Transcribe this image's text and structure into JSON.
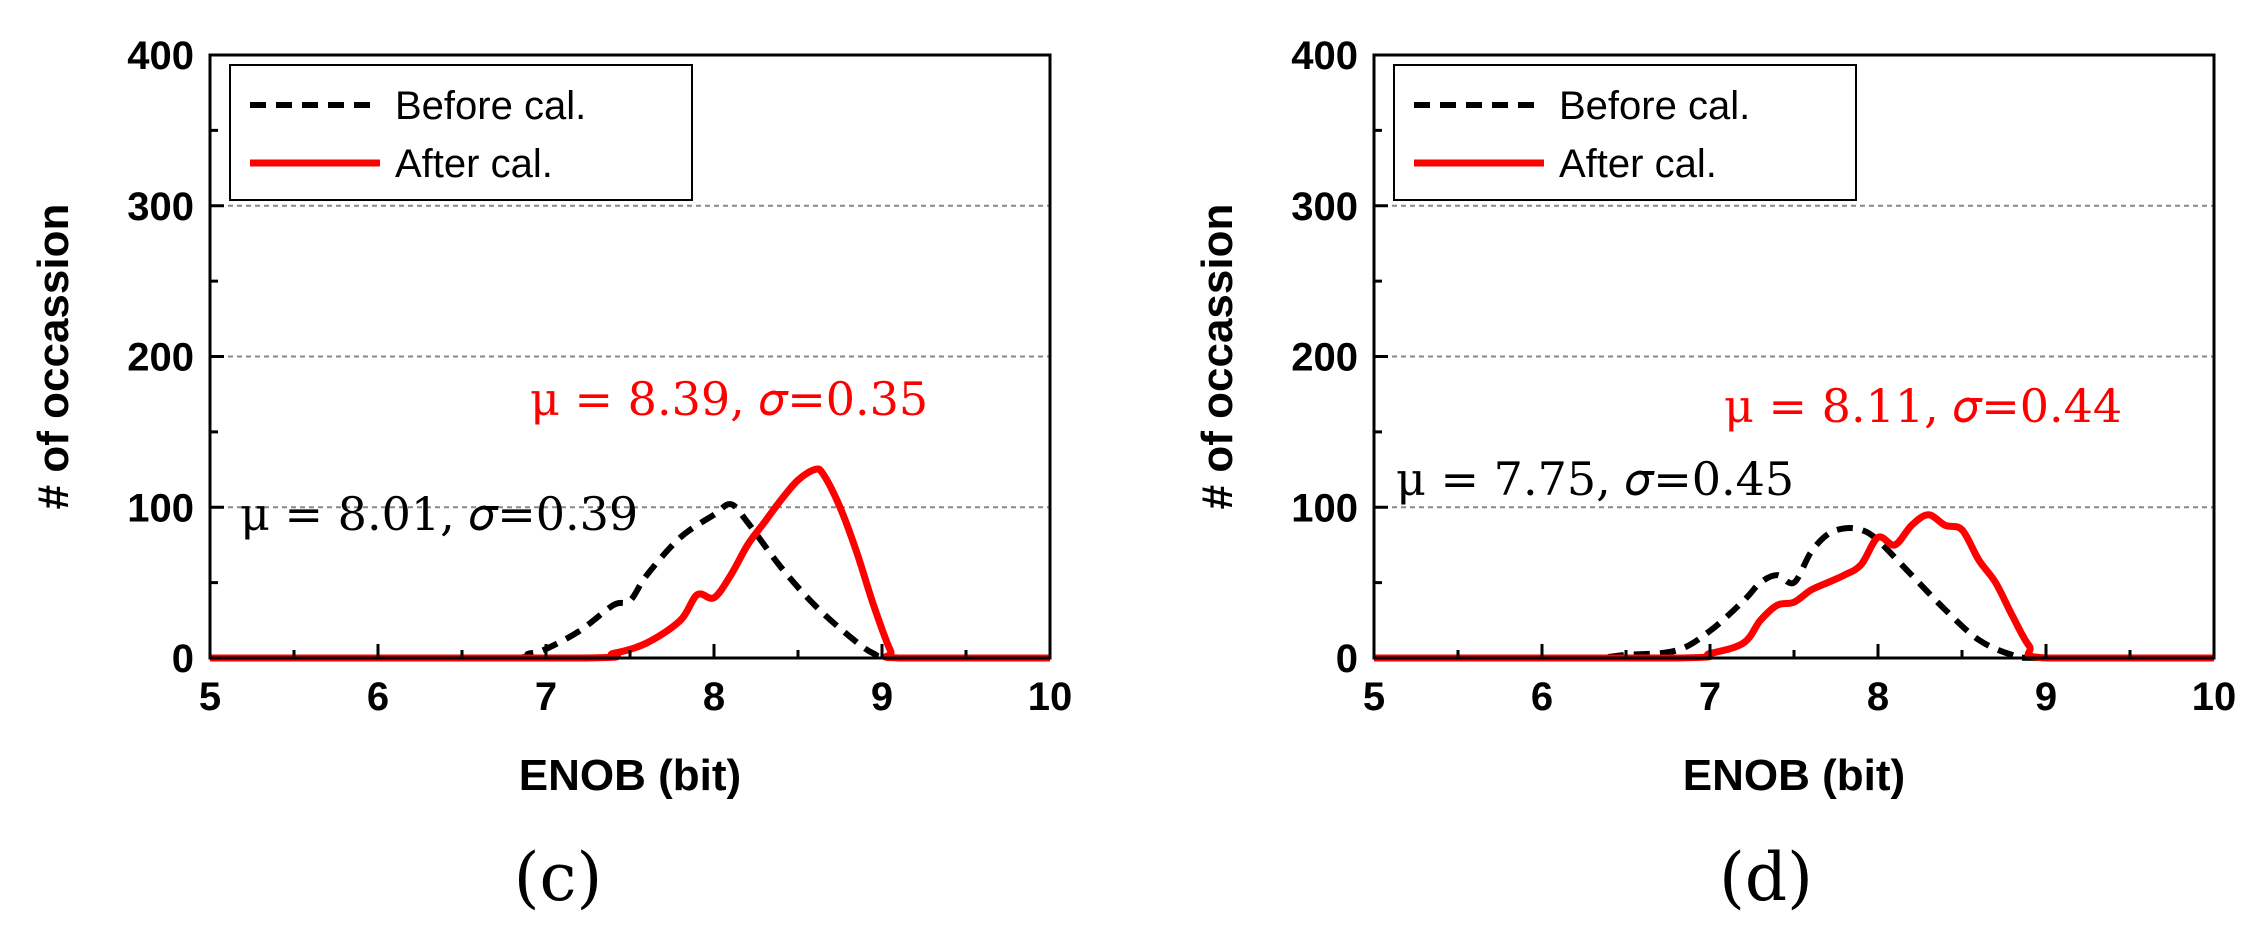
{
  "chart_data": [
    {
      "type": "line",
      "panel_label": "(c)",
      "xlabel": "ENOB (bit)",
      "ylabel": "# of occassion",
      "xlim": [
        5,
        10
      ],
      "ylim": [
        0,
        400
      ],
      "xticks": [
        "5",
        "6",
        "7",
        "8",
        "9",
        "10"
      ],
      "yticks": [
        "0",
        "100",
        "200",
        "300",
        "400"
      ],
      "grid": "horizontal dashed",
      "legend": "top-left",
      "series": [
        {
          "name": "Before cal.",
          "style": "dashed",
          "color": "#000000",
          "x": [
            5,
            6.7,
            6.9,
            7.0,
            7.2,
            7.4,
            7.5,
            7.6,
            7.8,
            8.0,
            8.1,
            8.2,
            8.4,
            8.6,
            8.8,
            8.95,
            9.1,
            10
          ],
          "y": [
            0,
            0,
            3,
            6,
            18,
            35,
            38,
            55,
            80,
            95,
            102,
            90,
            60,
            35,
            15,
            3,
            0,
            0
          ]
        },
        {
          "name": "After cal.",
          "style": "solid",
          "color": "#ff0000",
          "x": [
            5,
            7.2,
            7.4,
            7.6,
            7.8,
            7.9,
            8.0,
            8.1,
            8.2,
            8.3,
            8.4,
            8.5,
            8.6,
            8.65,
            8.75,
            8.85,
            8.95,
            9.05,
            9.1,
            10
          ],
          "y": [
            0,
            0,
            3,
            10,
            25,
            42,
            40,
            55,
            75,
            90,
            105,
            118,
            125,
            122,
            100,
            70,
            35,
            5,
            0,
            0
          ]
        }
      ],
      "annotations": [
        {
          "text": "μ = 8.01, 𝜎=0.39",
          "color": "#000000"
        },
        {
          "text": "μ = 8.39,  𝜎=0.35",
          "color": "#ff0000"
        }
      ]
    },
    {
      "type": "line",
      "panel_label": "(d)",
      "xlabel": "ENOB (bit)",
      "ylabel": "# of occassion",
      "xlim": [
        5,
        10
      ],
      "ylim": [
        0,
        400
      ],
      "xticks": [
        "5",
        "6",
        "7",
        "8",
        "9",
        "10"
      ],
      "yticks": [
        "0",
        "100",
        "200",
        "300",
        "400"
      ],
      "grid": "horizontal dashed",
      "legend": "top-left",
      "series": [
        {
          "name": "Before cal.",
          "style": "dashed",
          "color": "#000000",
          "x": [
            5,
            6.2,
            6.5,
            6.8,
            7.0,
            7.2,
            7.3,
            7.4,
            7.5,
            7.6,
            7.7,
            7.8,
            7.9,
            8.0,
            8.2,
            8.4,
            8.6,
            8.8,
            8.95,
            10
          ],
          "y": [
            0,
            0,
            2,
            5,
            18,
            38,
            50,
            55,
            50,
            70,
            82,
            86,
            85,
            78,
            55,
            32,
            12,
            2,
            0,
            0
          ]
        },
        {
          "name": "After cal.",
          "style": "solid",
          "color": "#ff0000",
          "x": [
            5,
            6.8,
            7.0,
            7.2,
            7.3,
            7.4,
            7.5,
            7.6,
            7.7,
            7.8,
            7.9,
            8.0,
            8.1,
            8.2,
            8.3,
            8.4,
            8.5,
            8.6,
            8.7,
            8.8,
            8.9,
            9.0,
            10
          ],
          "y": [
            0,
            0,
            3,
            10,
            25,
            35,
            37,
            45,
            50,
            55,
            62,
            80,
            75,
            88,
            95,
            88,
            85,
            65,
            50,
            28,
            8,
            0,
            0
          ]
        }
      ],
      "annotations": [
        {
          "text": "μ = 7.75, 𝜎=0.45",
          "color": "#000000"
        },
        {
          "text": "μ = 8.11, 𝜎=0.44",
          "color": "#ff0000"
        }
      ]
    }
  ]
}
